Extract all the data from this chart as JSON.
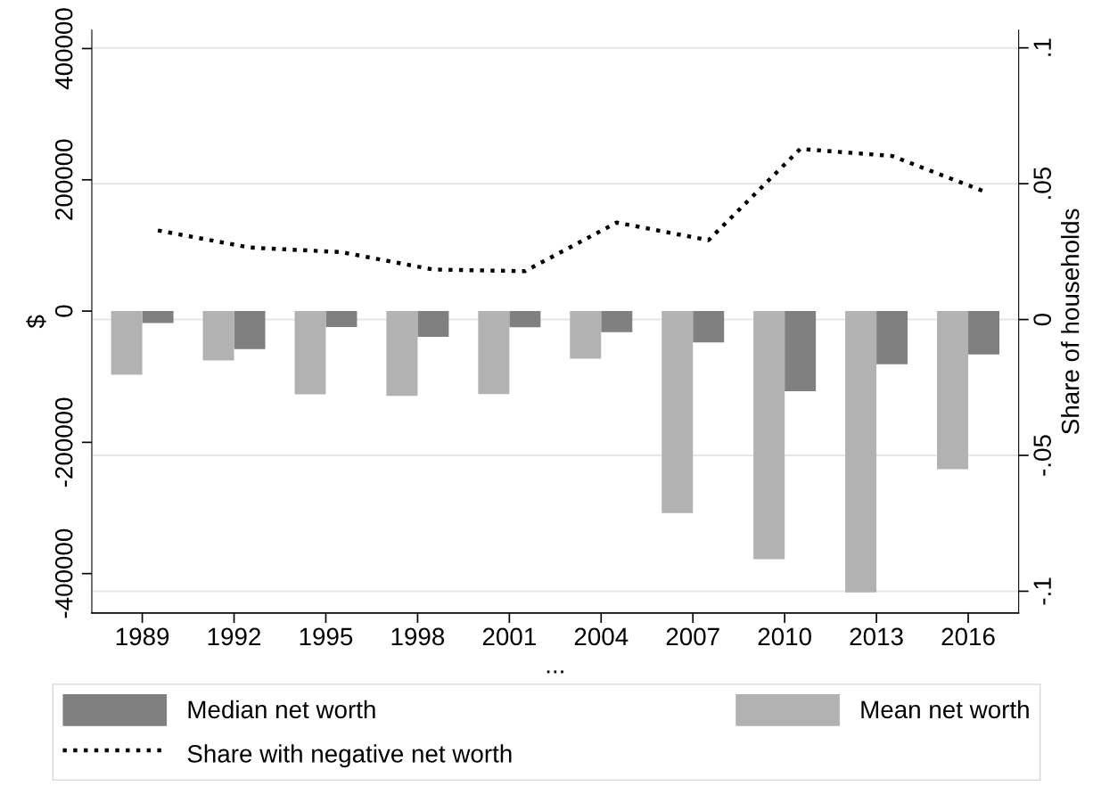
{
  "chart_data": {
    "type": "bar",
    "xlabel": "...",
    "ylabel": "$",
    "y2label": "Share of households",
    "categories": [
      "1989",
      "1992",
      "1995",
      "1998",
      "2001",
      "2004",
      "2007",
      "2010",
      "2013",
      "2016"
    ],
    "series": [
      {
        "name": "Median net worth",
        "color": "#808080",
        "values": [
          -18200,
          -57900,
          -24200,
          -39400,
          -24700,
          -32300,
          -47600,
          -122000,
          -81200,
          -66000
        ]
      },
      {
        "name": "Mean net worth",
        "color": "#b2b2b2",
        "values": [
          -97000,
          -75300,
          -126900,
          -129100,
          -126400,
          -72600,
          -307900,
          -378000,
          -428500,
          -241000
        ]
      },
      {
        "name": "Share with negative net worth",
        "type": "line",
        "axis": "y2",
        "color": "#000000",
        "line_style": "dotted",
        "values": [
          0.0328,
          0.0265,
          0.0248,
          0.0184,
          0.0178,
          0.0357,
          0.0292,
          0.0628,
          0.0602,
          0.0472
        ]
      }
    ],
    "ylim": [
      -460000,
      428000
    ],
    "yticks": [
      -400000,
      -200000,
      0,
      200000,
      400000
    ],
    "y2lim": [
      -0.108,
      0.1065
    ],
    "y2ticks": [
      {
        "value": -0.1,
        "label": "-.1"
      },
      {
        "value": -0.05,
        "label": "-.05"
      },
      {
        "value": 0,
        "label": "0"
      },
      {
        "value": 0.05,
        "label": ".05"
      },
      {
        "value": 0.1,
        "label": ".1"
      }
    ],
    "grid": true,
    "legend": "bottom"
  }
}
